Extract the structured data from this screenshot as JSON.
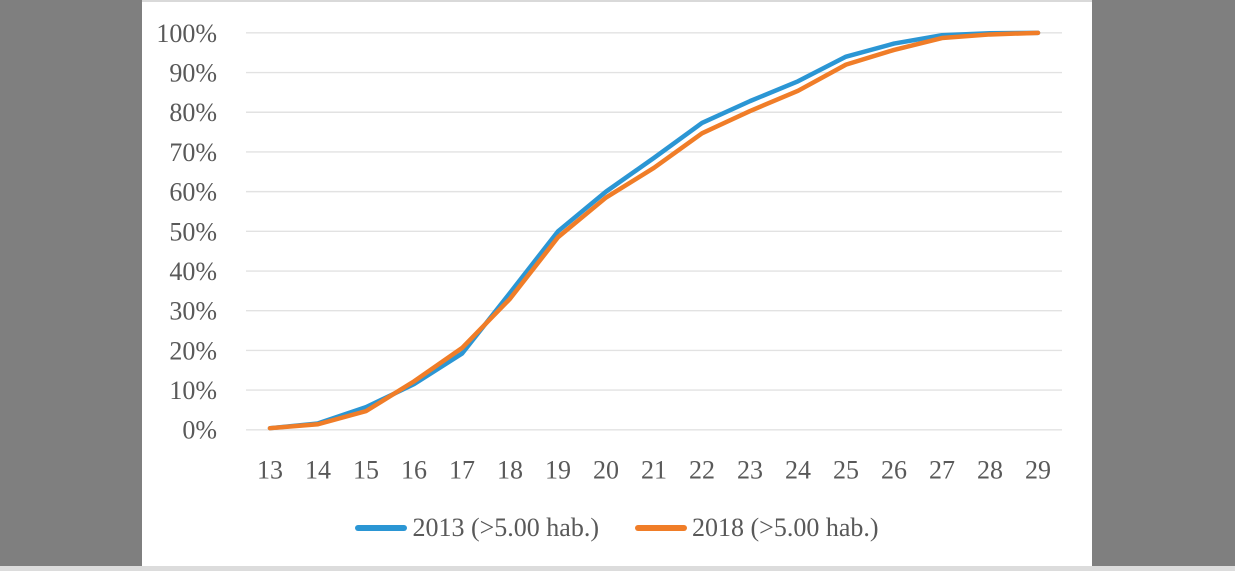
{
  "colors": {
    "background_gray": "#7f7f7f",
    "card_white": "#ffffff",
    "gridline": "#e2e2e2",
    "label_text": "#595959",
    "series_2013_blue": "#2b96d4",
    "series_2018_orange": "#f07d28",
    "bottom_strip": "#dcdcdc"
  },
  "legend": {
    "items": [
      {
        "label": "2013 (>5.00 hab.)",
        "color": "#2b96d4"
      },
      {
        "label": "2018 (>5.00 hab.)",
        "color": "#f07d28"
      }
    ]
  },
  "chart_data": {
    "type": "line",
    "title": "",
    "xlabel": "",
    "ylabel": "",
    "categories": [
      "13",
      "14",
      "15",
      "16",
      "17",
      "18",
      "19",
      "20",
      "21",
      "22",
      "23",
      "24",
      "25",
      "26",
      "27",
      "28",
      "29"
    ],
    "series": [
      {
        "name": "2013 (>5.00 hab.)",
        "color": "#2b96d4",
        "values": [
          0.4,
          1.6,
          5.7,
          11.5,
          19.2,
          34.5,
          50,
          60,
          68.5,
          77.3,
          82.8,
          87.8,
          94,
          97.3,
          99.4,
          99.9,
          100
        ]
      },
      {
        "name": "2018 (>5.00 hab.)",
        "color": "#f07d28",
        "values": [
          0.4,
          1.4,
          4.7,
          12.2,
          20.6,
          33,
          48.5,
          58.5,
          66,
          74.7,
          80.3,
          85.4,
          92,
          95.7,
          98.7,
          99.6,
          100
        ]
      }
    ],
    "yticks": [
      0,
      10,
      20,
      30,
      40,
      50,
      60,
      70,
      80,
      90,
      100
    ],
    "ytick_labels": [
      "0%",
      "10%",
      "20%",
      "30%",
      "40%",
      "50%",
      "60%",
      "70%",
      "80%",
      "90%",
      "100%"
    ],
    "ylim": [
      0,
      100
    ],
    "grid": "horizontal",
    "legend_position": "bottom"
  }
}
